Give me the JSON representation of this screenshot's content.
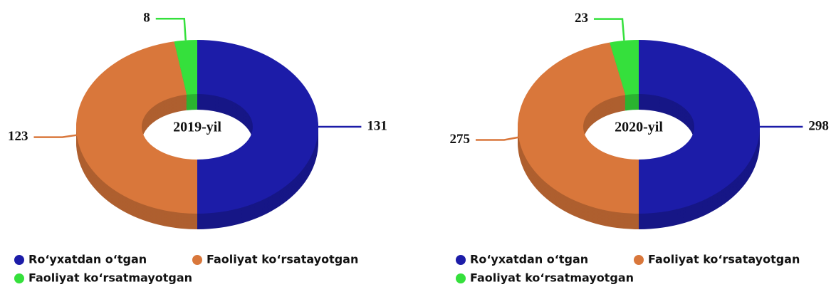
{
  "chart_data": [
    {
      "type": "pie",
      "title": "2019-yil",
      "categories": [
        "Ro‘yxatdan o‘tgan",
        "Faoliyat ko‘rsatayotgan",
        "Faoliyat ko‘rsatmayotgan"
      ],
      "values": [
        131,
        123,
        8
      ],
      "colors": [
        "#1c1ca8",
        "#d9773b",
        "#35e03c"
      ]
    },
    {
      "type": "pie",
      "title": "2020-yil",
      "categories": [
        "Ro‘yxatdan o‘tgan",
        "Faoliyat ko‘rsatayotgan",
        "Faoliyat ko‘rsatmayotgan"
      ],
      "values": [
        298,
        275,
        23
      ],
      "colors": [
        "#1c1ca8",
        "#d9773b",
        "#35e03c"
      ]
    }
  ]
}
